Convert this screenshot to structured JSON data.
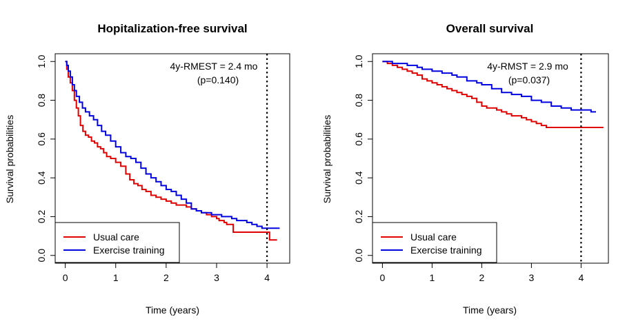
{
  "chart_data": [
    {
      "type": "line",
      "title": "Hopitalization-free survival",
      "xlabel": "Time (years)",
      "ylabel": "Survival probabilities",
      "xlim": [
        -0.2,
        4.45
      ],
      "ylim": [
        -0.04,
        1.04
      ],
      "xticks": [
        0,
        1,
        2,
        3,
        4
      ],
      "xtick_labels": [
        "0",
        "1",
        "2",
        "3",
        "4"
      ],
      "yticks": [
        0.0,
        0.2,
        0.4,
        0.6,
        0.8,
        1.0
      ],
      "ytick_labels": [
        "0.0",
        "0.2",
        "0.4",
        "0.6",
        "0.8",
        "1.0"
      ],
      "vline_x": 4,
      "annotation": [
        "4y-RMEST = 2.4 mo",
        "(p=0.140)"
      ],
      "legend": {
        "position": "bottom-left",
        "entries": [
          "Usual care",
          "Exercise training"
        ]
      },
      "series": [
        {
          "name": "Usual care",
          "color": "#e00000",
          "x": [
            0,
            0.03,
            0.06,
            0.1,
            0.14,
            0.18,
            0.22,
            0.26,
            0.3,
            0.35,
            0.4,
            0.46,
            0.52,
            0.58,
            0.64,
            0.7,
            0.76,
            0.82,
            0.9,
            1.0,
            1.1,
            1.2,
            1.28,
            1.36,
            1.44,
            1.52,
            1.6,
            1.7,
            1.8,
            1.9,
            2.0,
            2.1,
            2.2,
            2.3,
            2.4,
            2.5,
            2.6,
            2.7,
            2.8,
            2.9,
            3.0,
            3.05,
            3.15,
            3.2,
            3.3,
            3.33,
            3.5,
            3.7,
            3.9,
            4.0,
            4.05,
            4.2
          ],
          "y": [
            1.0,
            0.96,
            0.92,
            0.89,
            0.85,
            0.8,
            0.76,
            0.72,
            0.67,
            0.64,
            0.62,
            0.61,
            0.59,
            0.58,
            0.56,
            0.55,
            0.53,
            0.51,
            0.5,
            0.48,
            0.46,
            0.42,
            0.39,
            0.37,
            0.36,
            0.34,
            0.33,
            0.31,
            0.3,
            0.29,
            0.28,
            0.27,
            0.26,
            0.26,
            0.25,
            0.24,
            0.23,
            0.22,
            0.21,
            0.2,
            0.19,
            0.18,
            0.17,
            0.16,
            0.16,
            0.12,
            0.12,
            0.12,
            0.12,
            0.12,
            0.08,
            0.08
          ]
        },
        {
          "name": "Exercise training",
          "color": "#0000e0",
          "x": [
            0,
            0.03,
            0.06,
            0.1,
            0.14,
            0.18,
            0.22,
            0.28,
            0.34,
            0.4,
            0.48,
            0.56,
            0.64,
            0.72,
            0.8,
            0.9,
            1.0,
            1.1,
            1.2,
            1.3,
            1.4,
            1.5,
            1.6,
            1.7,
            1.8,
            1.9,
            2.0,
            2.1,
            2.2,
            2.3,
            2.4,
            2.5,
            2.6,
            2.7,
            2.8,
            2.9,
            3.0,
            3.1,
            3.2,
            3.3,
            3.4,
            3.5,
            3.6,
            3.7,
            3.8,
            3.9,
            4.0,
            4.1,
            4.25
          ],
          "y": [
            1.0,
            0.98,
            0.95,
            0.92,
            0.88,
            0.85,
            0.82,
            0.79,
            0.76,
            0.74,
            0.72,
            0.7,
            0.67,
            0.64,
            0.62,
            0.59,
            0.56,
            0.53,
            0.51,
            0.5,
            0.48,
            0.45,
            0.42,
            0.4,
            0.38,
            0.36,
            0.34,
            0.33,
            0.31,
            0.29,
            0.27,
            0.24,
            0.23,
            0.22,
            0.22,
            0.21,
            0.21,
            0.2,
            0.2,
            0.19,
            0.18,
            0.18,
            0.17,
            0.16,
            0.15,
            0.14,
            0.14,
            0.14,
            0.14
          ]
        }
      ]
    },
    {
      "type": "line",
      "title": "Overall survival",
      "xlabel": "Time (years)",
      "ylabel": "Survival probabilities",
      "xlim": [
        -0.2,
        4.55
      ],
      "ylim": [
        -0.04,
        1.04
      ],
      "xticks": [
        0,
        1,
        2,
        3,
        4
      ],
      "xtick_labels": [
        "0",
        "1",
        "2",
        "3",
        "4"
      ],
      "yticks": [
        0.0,
        0.2,
        0.4,
        0.6,
        0.8,
        1.0
      ],
      "ytick_labels": [
        "0.0",
        "0.2",
        "0.4",
        "0.6",
        "0.8",
        "1.0"
      ],
      "vline_x": 4,
      "annotation": [
        "4y-RMST = 2.9 mo",
        "(p=0.037)"
      ],
      "legend": {
        "position": "bottom-left",
        "entries": [
          "Usual care",
          "Exercise training"
        ]
      },
      "series": [
        {
          "name": "Usual care",
          "color": "#e00000",
          "x": [
            0,
            0.1,
            0.2,
            0.3,
            0.4,
            0.5,
            0.6,
            0.7,
            0.8,
            0.9,
            1.0,
            1.1,
            1.2,
            1.3,
            1.4,
            1.5,
            1.6,
            1.7,
            1.8,
            1.9,
            2.0,
            2.1,
            2.2,
            2.3,
            2.4,
            2.5,
            2.6,
            2.7,
            2.8,
            2.9,
            3.0,
            3.1,
            3.2,
            3.3,
            3.5,
            3.7,
            3.9,
            4.1,
            4.3,
            4.45
          ],
          "y": [
            1.0,
            0.99,
            0.98,
            0.97,
            0.96,
            0.95,
            0.94,
            0.93,
            0.91,
            0.9,
            0.89,
            0.88,
            0.87,
            0.86,
            0.85,
            0.84,
            0.83,
            0.82,
            0.81,
            0.79,
            0.77,
            0.76,
            0.76,
            0.75,
            0.74,
            0.73,
            0.72,
            0.72,
            0.71,
            0.7,
            0.69,
            0.68,
            0.67,
            0.66,
            0.66,
            0.66,
            0.66,
            0.66,
            0.66,
            0.66
          ]
        },
        {
          "name": "Exercise training",
          "color": "#0000e0",
          "x": [
            0,
            0.1,
            0.2,
            0.3,
            0.5,
            0.7,
            0.8,
            1.0,
            1.2,
            1.4,
            1.5,
            1.7,
            1.9,
            2.0,
            2.2,
            2.4,
            2.6,
            2.8,
            3.0,
            3.2,
            3.4,
            3.6,
            3.8,
            4.0,
            4.2,
            4.3
          ],
          "y": [
            1.0,
            1.0,
            0.99,
            0.99,
            0.98,
            0.97,
            0.96,
            0.95,
            0.94,
            0.93,
            0.92,
            0.9,
            0.89,
            0.88,
            0.86,
            0.84,
            0.83,
            0.82,
            0.8,
            0.79,
            0.77,
            0.76,
            0.75,
            0.75,
            0.74,
            0.74
          ]
        }
      ]
    }
  ]
}
